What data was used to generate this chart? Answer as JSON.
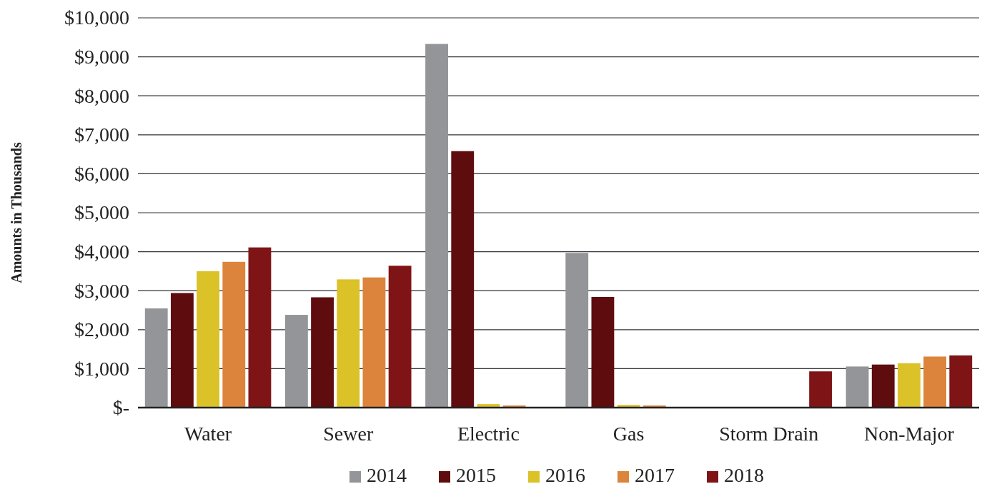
{
  "chart_data": {
    "type": "bar",
    "ylabel": "Amounts in Thousands",
    "categories": [
      "Water",
      "Sewer",
      "Electric",
      "Gas",
      "Storm Drain",
      "Non-Major"
    ],
    "series": [
      {
        "name": "2014",
        "color": "#939598",
        "values": [
          2545,
          2380,
          9330,
          3970,
          0,
          1055
        ]
      },
      {
        "name": "2015",
        "color": "#5e0c0e",
        "values": [
          2940,
          2830,
          6580,
          2840,
          0,
          1105
        ]
      },
      {
        "name": "2016",
        "color": "#dbc228",
        "values": [
          3500,
          3290,
          90,
          70,
          0,
          1140
        ]
      },
      {
        "name": "2017",
        "color": "#dc843c",
        "values": [
          3740,
          3340,
          55,
          55,
          0,
          1310
        ]
      },
      {
        "name": "2018",
        "color": "#7f1416",
        "values": [
          4110,
          3640,
          0,
          0,
          930,
          1340
        ]
      }
    ],
    "ylim": [
      0,
      10000
    ],
    "yticks": [
      {
        "value": 0,
        "label": "$-"
      },
      {
        "value": 1000,
        "label": "$1,000"
      },
      {
        "value": 2000,
        "label": "$2,000"
      },
      {
        "value": 3000,
        "label": "$3,000"
      },
      {
        "value": 4000,
        "label": "$4,000"
      },
      {
        "value": 5000,
        "label": "$5,000"
      },
      {
        "value": 6000,
        "label": "$6,000"
      },
      {
        "value": 7000,
        "label": "$7,000"
      },
      {
        "value": 8000,
        "label": "$8,000"
      },
      {
        "value": 9000,
        "label": "$9,000"
      },
      {
        "value": 10000,
        "label": "$10,000"
      }
    ],
    "grid": "y",
    "legend": "bottom"
  }
}
